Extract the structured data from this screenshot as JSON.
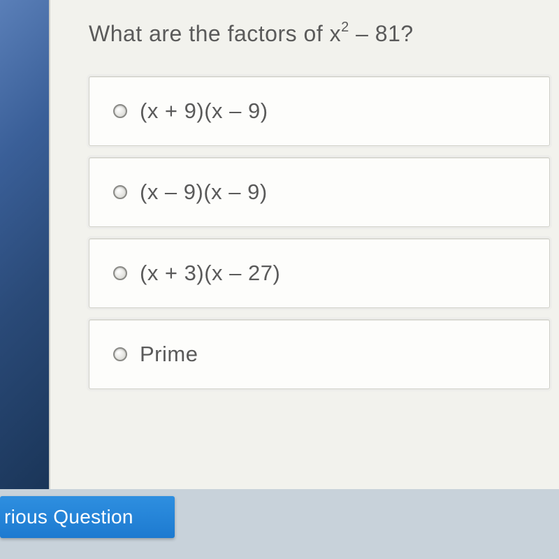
{
  "question": {
    "prefix": "What are the factors of x",
    "exp": "2",
    "suffix": " – 81?",
    "text_color": "#5a5a5a",
    "font_size_pt": 24
  },
  "choices": [
    {
      "label": "(x + 9)(x – 9)"
    },
    {
      "label": "(x – 9)(x – 9)"
    },
    {
      "label": "(x + 3)(x – 27)"
    },
    {
      "label": "Prime"
    }
  ],
  "choice_style": {
    "background": "#fdfdfb",
    "border_color": "#cfcfc8",
    "text_color": "#5a5a5a",
    "font_size_pt": 23
  },
  "nav": {
    "previous_label": "rious Question",
    "button_bg": "#1d7ad0",
    "button_text_color": "#ffffff"
  },
  "colors": {
    "panel_bg": "#f2f2ed",
    "sidebar_gradient": [
      "#5a7fb8",
      "#1a3558"
    ],
    "page_bg": "#b8c4cc"
  }
}
